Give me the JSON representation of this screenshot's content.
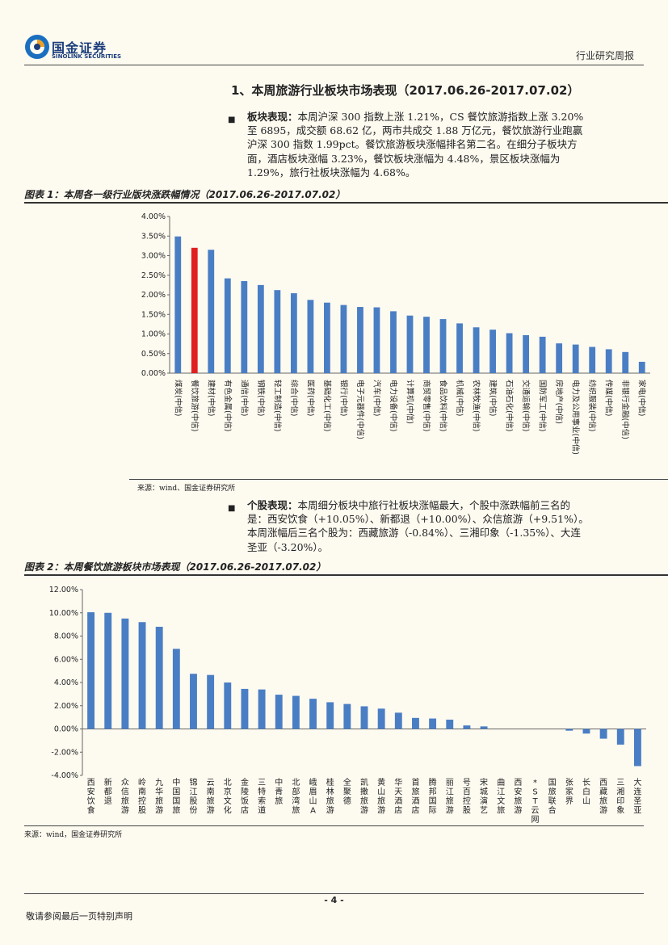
{
  "header": {
    "logo_title": "国金证券",
    "logo_subtitle": "SINOLINK SECURITIES",
    "report_type": "行业研究周报"
  },
  "section": {
    "title": "1、本周旅游行业板块市场表现（2017.06.26-2017.07.02）"
  },
  "para1": {
    "lead": "板块表现：",
    "lines": [
      "本周沪深 300 指数上涨 1.21%，CS 餐饮旅游指数上涨 3.20%",
      "至 6895，成交额 68.62 亿，两市共成交 1.88 万亿元，餐饮旅游行业跑赢",
      "沪深 300 指数 1.99pct。餐饮旅游板块涨幅排名第二名。在细分子板块方",
      "面，酒店板块涨幅 3.23%，餐饮板块涨幅为 4.48%，景区板块涨幅为",
      "1.29%，旅行社板块涨幅为 4.68%。"
    ]
  },
  "figure1": {
    "title": "图表 1：本周各一级行业版块涨跌幅情况（2017.06.26-2017.07.02）",
    "source": "来源：wind、国金证券研究所"
  },
  "para2": {
    "lead": "个股表现：",
    "lines": [
      "本周细分板块中旅行社板块涨幅最大，个股中涨跌幅前三名的",
      "是：西安饮食（+10.05%）、新都退（+10.00%）、众信旅游（+9.51%）。",
      "本周涨幅后三名个股为：西藏旅游（-0.84%）、三湘印象（-1.35%）、大连",
      "圣亚（-3.20%）。"
    ]
  },
  "figure2": {
    "title": "图表 2：本周餐饮旅游板块市场表现（2017.06.26-2017.07.02）",
    "source": "来源：wind，国金证券研究所"
  },
  "chart_data": [
    {
      "type": "bar",
      "title": "",
      "categories": [
        "煤炭(中信)",
        "餐饮旅游(中信)",
        "建材(中信)",
        "有色金属(中信)",
        "通信(中信)",
        "钢铁(中信)",
        "轻工制造(中信)",
        "综合(中信)",
        "医药(中信)",
        "基础化工(中信)",
        "银行(中信)",
        "电子元器件(中信)",
        "汽车(中信)",
        "电力设备(中信)",
        "计算机(中信)",
        "商贸零售(中信)",
        "食品饮料(中信)",
        "机械(中信)",
        "农林牧渔(中信)",
        "建筑(中信)",
        "石油石化(中信)",
        "交通运输(中信)",
        "国防军工(中信)",
        "房地产(中信)",
        "电力及公用事业(中信)",
        "纺织服装(中信)",
        "传媒(中信)",
        "非银行金融(中信)",
        "家电(中信)"
      ],
      "values": [
        3.49,
        3.2,
        3.15,
        2.42,
        2.35,
        2.25,
        2.12,
        2.04,
        1.87,
        1.8,
        1.74,
        1.69,
        1.68,
        1.58,
        1.47,
        1.44,
        1.38,
        1.27,
        1.17,
        1.11,
        1.02,
        0.97,
        0.93,
        0.76,
        0.73,
        0.67,
        0.61,
        0.54,
        0.29
      ],
      "highlight_index": 1,
      "ylim": [
        0,
        4
      ],
      "yticks": [
        "4.00%",
        "3.50%",
        "3.00%",
        "2.50%",
        "2.00%",
        "1.50%",
        "1.00%",
        "0.50%",
        "0.00%"
      ],
      "unit": "%",
      "colors": {
        "bar": "#4a7ec4",
        "highlight": "#e02020"
      },
      "grid": false
    },
    {
      "type": "bar",
      "title": "",
      "categories": [
        "西安饮食",
        "新都退",
        "众信旅游",
        "岭南控股",
        "九华旅游",
        "中国国旅",
        "锦江股份",
        "云南旅游",
        "北京文化",
        "金陵饭店",
        "三特索道",
        "中青旅",
        "北部湾旅",
        "峨眉山A",
        "桂林旅游",
        "全聚德",
        "凯撒旅游",
        "黄山旅游",
        "华天酒店",
        "首旅酒店",
        "腾邦国际",
        "丽江旅游",
        "号百控股",
        "宋城演艺",
        "曲江文旅",
        "西安旅游",
        "*ST云网",
        "国旅联合",
        "张家界",
        "长白山",
        "西藏旅游",
        "三湘印象",
        "大连圣亚"
      ],
      "values": [
        10.05,
        10.0,
        9.51,
        9.2,
        8.8,
        6.9,
        4.75,
        4.65,
        4.0,
        3.45,
        3.4,
        2.95,
        2.85,
        2.6,
        2.3,
        2.15,
        1.95,
        1.75,
        1.4,
        0.95,
        0.9,
        0.8,
        0.3,
        0.22,
        0.0,
        0.0,
        0.0,
        0.0,
        -0.15,
        -0.4,
        -0.84,
        -1.35,
        -3.2
      ],
      "ylim": [
        -4,
        12
      ],
      "yticks": [
        "12.00%",
        "10.00%",
        "8.00%",
        "6.00%",
        "4.00%",
        "2.00%",
        "0.00%",
        "-2.00%",
        "-4.00%"
      ],
      "unit": "%",
      "colors": {
        "bar": "#4a7ec4"
      },
      "grid": false
    }
  ],
  "footer": {
    "page": "- 4 -",
    "notice": "敬请参阅最后一页特别声明"
  }
}
